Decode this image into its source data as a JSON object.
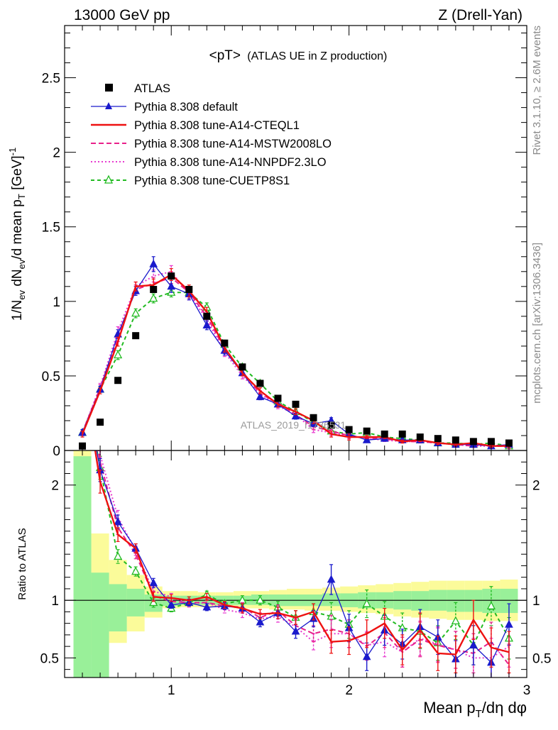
{
  "header": {
    "left": "13000 GeV pp",
    "right": "Z (Drell-Yan)"
  },
  "title_main": "<pT>",
  "title_sub": "(ATLAS UE in Z production)",
  "side_text": {
    "rivet": "Rivet 3.1.10, ≥ 2.6M events",
    "mcplots": "mcplots.cern.ch [arXiv:1306.3436]"
  },
  "watermark": "ATLAS_2019_I1736531",
  "colors": {
    "atlas": "#000000",
    "default": "#1a1acc",
    "cteql1": "#ee1111",
    "mstw": "#e8208a",
    "nnpdf": "#e83ad0",
    "cuetp8s1": "#22bb22",
    "band_inner": "#99f099",
    "band_outer": "#fbfb9a"
  },
  "chart_data": [
    {
      "type": "line",
      "ylabel": "1/N_ev dN_ev/d mean p_T [GeV]^-1",
      "ylim": [
        0,
        2.85
      ],
      "xlim": [
        0.4,
        3.0
      ],
      "yticks": [
        "0",
        "0.5",
        "1",
        "1.5",
        "2",
        "2.5"
      ],
      "legend_position": "top-left",
      "x": [
        0.5,
        0.6,
        0.7,
        0.8,
        0.9,
        1.0,
        1.1,
        1.2,
        1.3,
        1.4,
        1.5,
        1.6,
        1.7,
        1.8,
        1.9,
        2.0,
        2.1,
        2.2,
        2.3,
        2.4,
        2.5,
        2.6,
        2.7,
        2.8,
        2.9
      ],
      "series": [
        {
          "name": "ATLAS",
          "key": "atlas",
          "marker": "square",
          "values": [
            0.03,
            0.19,
            0.47,
            0.77,
            1.08,
            1.17,
            1.08,
            0.9,
            0.72,
            0.56,
            0.45,
            0.35,
            0.31,
            0.22,
            0.17,
            0.14,
            0.13,
            0.11,
            0.11,
            0.09,
            0.08,
            0.07,
            0.06,
            0.06,
            0.05
          ]
        },
        {
          "name": "Pythia 8.308 default",
          "key": "default",
          "marker": "triangle",
          "dash": "",
          "values": [
            0.12,
            0.41,
            0.78,
            1.07,
            1.25,
            1.1,
            1.05,
            0.84,
            0.67,
            0.52,
            0.36,
            0.31,
            0.23,
            0.18,
            0.2,
            0.11,
            0.07,
            0.08,
            0.07,
            0.07,
            0.05,
            0.04,
            0.04,
            0.03,
            0.04
          ],
          "errors": [
            0.02,
            0.02,
            0.03,
            0.03,
            0.05,
            0.04,
            0.04,
            0.03,
            0.03,
            0.02,
            0.02,
            0.02,
            0.02,
            0.02,
            0.02,
            0.02,
            0.01,
            0.01,
            0.01,
            0.01,
            0.01,
            0.01,
            0.01,
            0.01,
            0.01
          ]
        },
        {
          "name": "Pythia 8.308 tune-A14-CTEQL1",
          "key": "cteql1",
          "marker": "none",
          "dash": "",
          "values": [
            0.11,
            0.4,
            0.73,
            1.1,
            1.11,
            1.18,
            1.07,
            0.93,
            0.69,
            0.52,
            0.4,
            0.31,
            0.26,
            0.2,
            0.11,
            0.09,
            0.09,
            0.09,
            0.06,
            0.07,
            0.05,
            0.04,
            0.05,
            0.03,
            0.03
          ],
          "errors": [
            0.02,
            0.02,
            0.03,
            0.03,
            0.04,
            0.04,
            0.04,
            0.03,
            0.03,
            0.02,
            0.02,
            0.02,
            0.02,
            0.02,
            0.02,
            0.02,
            0.01,
            0.01,
            0.01,
            0.01,
            0.01,
            0.01,
            0.01,
            0.01,
            0.01
          ]
        },
        {
          "name": "Pythia 8.308 tune-A14-MSTW2008LO",
          "key": "mstw",
          "marker": "none",
          "dash": "7,4",
          "values": [
            0.12,
            0.42,
            0.76,
            1.08,
            1.12,
            1.16,
            1.06,
            0.9,
            0.68,
            0.53,
            0.38,
            0.32,
            0.24,
            0.16,
            0.13,
            0.1,
            0.08,
            0.08,
            0.06,
            0.06,
            0.05,
            0.04,
            0.03,
            0.04,
            0.02
          ],
          "errors": [
            0.02,
            0.02,
            0.03,
            0.03,
            0.04,
            0.04,
            0.04,
            0.03,
            0.03,
            0.02,
            0.02,
            0.02,
            0.02,
            0.02,
            0.02,
            0.02,
            0.01,
            0.01,
            0.01,
            0.01,
            0.01,
            0.01,
            0.01,
            0.01,
            0.01
          ]
        },
        {
          "name": "Pythia 8.308 tune-A14-NNPDF2.3LO",
          "key": "nnpdf",
          "marker": "none",
          "dash": "2,3",
          "values": [
            0.12,
            0.43,
            0.8,
            1.1,
            1.17,
            1.2,
            1.05,
            0.88,
            0.66,
            0.5,
            0.38,
            0.3,
            0.24,
            0.14,
            0.12,
            0.1,
            0.08,
            0.07,
            0.06,
            0.06,
            0.05,
            0.04,
            0.03,
            0.03,
            0.03
          ],
          "errors": [
            0.02,
            0.02,
            0.03,
            0.03,
            0.04,
            0.04,
            0.04,
            0.03,
            0.03,
            0.02,
            0.02,
            0.02,
            0.02,
            0.02,
            0.02,
            0.02,
            0.01,
            0.01,
            0.01,
            0.01,
            0.01,
            0.01,
            0.01,
            0.01,
            0.01
          ]
        },
        {
          "name": "Pythia 8.308 tune-CUETP8S1",
          "key": "cuetp8s1",
          "marker": "triangle-open",
          "dash": "5,4",
          "values": [
            0.12,
            0.41,
            0.64,
            0.92,
            1.02,
            1.06,
            1.06,
            0.96,
            0.71,
            0.56,
            0.45,
            0.33,
            0.26,
            0.19,
            0.13,
            0.11,
            0.12,
            0.09,
            0.08,
            0.07,
            0.05,
            0.05,
            0.04,
            0.05,
            0.03
          ],
          "errors": [
            0.02,
            0.02,
            0.03,
            0.03,
            0.03,
            0.03,
            0.03,
            0.03,
            0.03,
            0.02,
            0.02,
            0.02,
            0.02,
            0.02,
            0.02,
            0.02,
            0.01,
            0.01,
            0.01,
            0.01,
            0.01,
            0.01,
            0.01,
            0.01,
            0.01
          ]
        }
      ]
    },
    {
      "type": "line",
      "ylabel": "Ratio to ATLAS",
      "xlabel": "Mean p_T/dη dφ",
      "xlim": [
        0.4,
        3.0
      ],
      "ylim": [
        0.33,
        2.3
      ],
      "yticks": [
        "0.5",
        "1",
        "2"
      ],
      "xticks": [
        "1",
        "2",
        "3"
      ],
      "reference_line": 1.0,
      "bands": {
        "edges": [
          0.45,
          0.55,
          0.65,
          0.75,
          0.85,
          0.95,
          1.05,
          1.15,
          1.25,
          1.35,
          1.45,
          1.55,
          1.65,
          1.75,
          1.85,
          1.95,
          2.05,
          2.15,
          2.25,
          2.35,
          2.45,
          2.55,
          2.65,
          2.75,
          2.85,
          2.95
        ],
        "inner_low": [
          0.3,
          0.3,
          0.73,
          0.86,
          0.9,
          0.95,
          0.96,
          0.96,
          0.96,
          0.96,
          0.96,
          0.95,
          0.95,
          0.95,
          0.95,
          0.94,
          0.93,
          0.93,
          0.92,
          0.91,
          0.91,
          0.9,
          0.9,
          0.89,
          0.89
        ],
        "inner_high": [
          2.25,
          1.24,
          1.14,
          1.1,
          1.05,
          1.04,
          1.04,
          1.04,
          1.04,
          1.04,
          1.05,
          1.05,
          1.05,
          1.05,
          1.06,
          1.06,
          1.07,
          1.07,
          1.08,
          1.08,
          1.09,
          1.09,
          1.09,
          1.1,
          1.1
        ],
        "outer_low": [
          0.3,
          0.53,
          0.63,
          0.73,
          0.85,
          0.93,
          0.94,
          0.94,
          0.94,
          0.93,
          0.93,
          0.92,
          0.92,
          0.91,
          0.91,
          0.9,
          0.89,
          0.88,
          0.86,
          0.85,
          0.84,
          0.83,
          0.83,
          0.82,
          0.82
        ],
        "outer_high": [
          2.3,
          1.58,
          1.35,
          1.22,
          1.12,
          1.08,
          1.08,
          1.07,
          1.07,
          1.08,
          1.08,
          1.09,
          1.1,
          1.1,
          1.11,
          1.12,
          1.13,
          1.14,
          1.15,
          1.16,
          1.17,
          1.17,
          1.17,
          1.17,
          1.18
        ]
      },
      "series": [
        {
          "name": "Pythia 8.308 default",
          "key": "default",
          "marker": "triangle",
          "dash": "",
          "values": [
            3.0,
            2.13,
            1.68,
            1.45,
            1.15,
            0.96,
            0.98,
            0.94,
            0.95,
            0.93,
            0.81,
            0.89,
            0.73,
            0.84,
            1.18,
            0.76,
            0.51,
            0.74,
            0.62,
            0.77,
            0.68,
            0.49,
            0.61,
            0.46,
            0.79
          ],
          "errors": [
            0.2,
            0.1,
            0.06,
            0.04,
            0.04,
            0.03,
            0.03,
            0.03,
            0.03,
            0.04,
            0.04,
            0.05,
            0.06,
            0.07,
            0.13,
            0.12,
            0.12,
            0.13,
            0.13,
            0.15,
            0.15,
            0.16,
            0.17,
            0.17,
            0.18
          ]
        },
        {
          "name": "Pythia 8.308 tune-A14-CTEQL1",
          "key": "cteql1",
          "marker": "none",
          "dash": "",
          "values": [
            3.0,
            2.03,
            1.57,
            1.45,
            1.03,
            1.02,
            1.0,
            1.03,
            0.96,
            0.93,
            0.88,
            0.89,
            0.85,
            0.9,
            0.64,
            0.65,
            0.71,
            0.8,
            0.57,
            0.74,
            0.54,
            0.53,
            0.83,
            0.59,
            0.55
          ],
          "errors": [
            0.2,
            0.1,
            0.06,
            0.04,
            0.04,
            0.03,
            0.03,
            0.03,
            0.03,
            0.04,
            0.04,
            0.05,
            0.06,
            0.07,
            0.1,
            0.12,
            0.12,
            0.13,
            0.13,
            0.15,
            0.15,
            0.16,
            0.17,
            0.17,
            0.18
          ]
        },
        {
          "name": "Pythia 8.308 tune-A14-MSTW2008LO",
          "key": "mstw",
          "marker": "none",
          "dash": "7,4",
          "values": [
            3.0,
            2.2,
            1.63,
            1.4,
            1.04,
            0.99,
            0.98,
            0.98,
            0.95,
            0.94,
            0.85,
            0.91,
            0.78,
            0.71,
            0.75,
            0.71,
            0.6,
            0.72,
            0.55,
            0.66,
            0.61,
            0.57,
            0.54,
            0.64,
            0.44
          ],
          "errors": [
            0.2,
            0.1,
            0.06,
            0.04,
            0.04,
            0.03,
            0.03,
            0.03,
            0.03,
            0.04,
            0.04,
            0.05,
            0.06,
            0.07,
            0.12,
            0.12,
            0.12,
            0.13,
            0.13,
            0.15,
            0.15,
            0.16,
            0.17,
            0.17,
            0.18
          ]
        },
        {
          "name": "Pythia 8.308 tune-A14-NNPDF2.3LO",
          "key": "nnpdf",
          "marker": "none",
          "dash": "2,3",
          "values": [
            3.0,
            2.26,
            1.72,
            1.43,
            1.08,
            1.03,
            0.97,
            0.98,
            0.92,
            0.89,
            0.84,
            0.86,
            0.77,
            0.64,
            0.71,
            0.71,
            0.61,
            0.64,
            0.55,
            0.67,
            0.62,
            0.57,
            0.5,
            0.5,
            0.6
          ],
          "errors": [
            0.2,
            0.1,
            0.06,
            0.04,
            0.04,
            0.03,
            0.03,
            0.03,
            0.03,
            0.04,
            0.04,
            0.05,
            0.06,
            0.07,
            0.12,
            0.12,
            0.12,
            0.13,
            0.13,
            0.15,
            0.15,
            0.16,
            0.17,
            0.17,
            0.18
          ]
        },
        {
          "name": "Pythia 8.308 tune-CUETP8S1",
          "key": "cuetp8s1",
          "marker": "triangle-open",
          "dash": "5,4",
          "values": [
            3.0,
            2.15,
            1.38,
            1.25,
            0.98,
            0.93,
            0.98,
            1.05,
            0.97,
            1.0,
            1.0,
            0.94,
            0.85,
            0.9,
            0.86,
            0.79,
            0.97,
            0.86,
            0.76,
            0.73,
            0.63,
            0.82,
            0.61,
            0.95,
            0.67
          ],
          "errors": [
            0.2,
            0.1,
            0.06,
            0.04,
            0.04,
            0.03,
            0.03,
            0.03,
            0.03,
            0.04,
            0.04,
            0.05,
            0.06,
            0.07,
            0.12,
            0.12,
            0.12,
            0.13,
            0.13,
            0.15,
            0.15,
            0.16,
            0.17,
            0.17,
            0.18
          ]
        }
      ]
    }
  ]
}
